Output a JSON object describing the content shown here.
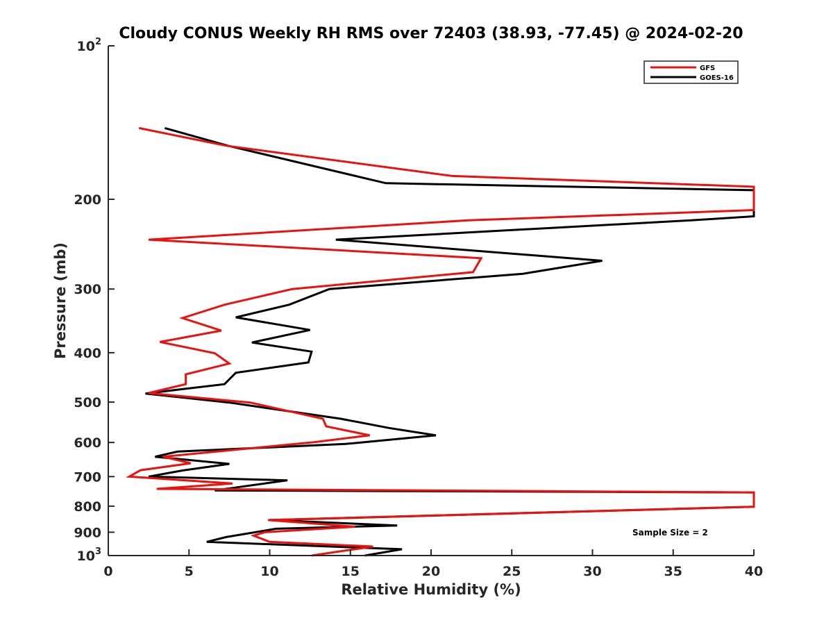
{
  "chart_data": {
    "type": "line",
    "title": "Cloudy CONUS Weekly RH RMS over 72403 (38.93, -77.45) @ 2024-02-20",
    "xlabel": "Relative Humidity (%)",
    "ylabel": "Pressure (mb)",
    "xlim": [
      0,
      40
    ],
    "ylim": [
      100,
      1000
    ],
    "y_scale": "log",
    "y_reversed": true,
    "grid": false,
    "legend_position": "top-right",
    "x_ticks": [
      "0",
      "5",
      "10",
      "15",
      "20",
      "25",
      "30",
      "35",
      "40"
    ],
    "y_ticks": [
      {
        "value": 100,
        "base": "10",
        "exp": "2"
      },
      {
        "value": 200,
        "label": "200"
      },
      {
        "value": 300,
        "label": "300"
      },
      {
        "value": 400,
        "label": "400"
      },
      {
        "value": 500,
        "label": "500"
      },
      {
        "value": 600,
        "label": "600"
      },
      {
        "value": 700,
        "label": "700"
      },
      {
        "value": 800,
        "label": "800"
      },
      {
        "value": 900,
        "label": "900"
      },
      {
        "value": 1000,
        "base": "10",
        "exp": "3"
      }
    ],
    "series": [
      {
        "name": "GFS",
        "color": "#e8130e",
        "points": [
          [
            1.9,
            145
          ],
          [
            7.3,
            157
          ],
          [
            21.3,
            180
          ],
          [
            40,
            189
          ],
          [
            40,
            210
          ],
          [
            22.3,
            220
          ],
          [
            2.5,
            240
          ],
          [
            23.1,
            261
          ],
          [
            22.6,
            278
          ],
          [
            11.4,
            300
          ],
          [
            7.2,
            322
          ],
          [
            4.6,
            342
          ],
          [
            7.0,
            362
          ],
          [
            3.2,
            381
          ],
          [
            6.6,
            401
          ],
          [
            7.5,
            420
          ],
          [
            4.8,
            441
          ],
          [
            4.8,
            461
          ],
          [
            2.5,
            480
          ],
          [
            8.8,
            501
          ],
          [
            13.3,
            539
          ],
          [
            13.5,
            558
          ],
          [
            16.2,
            581
          ],
          [
            12.8,
            599
          ],
          [
            3.4,
            640
          ],
          [
            5.1,
            659
          ],
          [
            2.0,
            680
          ],
          [
            1.3,
            700
          ],
          [
            7.7,
            722
          ],
          [
            3.0,
            740
          ],
          [
            40,
            752
          ],
          [
            40,
            802
          ],
          [
            9.9,
            852
          ],
          [
            15.3,
            878
          ],
          [
            9.7,
            900
          ],
          [
            9.0,
            914
          ],
          [
            10.0,
            940
          ],
          [
            16.4,
            960
          ],
          [
            12.6,
            1000
          ]
        ]
      },
      {
        "name": "GOES-16",
        "color": "#000000",
        "points": [
          [
            3.5,
            145
          ],
          [
            7.4,
            157
          ],
          [
            17.2,
            186
          ],
          [
            40,
            192
          ],
          [
            40,
            216
          ],
          [
            36.1,
            220
          ],
          [
            14.1,
            240
          ],
          [
            30.6,
            264
          ],
          [
            25.7,
            280
          ],
          [
            13.7,
            300
          ],
          [
            11.2,
            322
          ],
          [
            7.9,
            341
          ],
          [
            12.5,
            361
          ],
          [
            8.9,
            382
          ],
          [
            12.6,
            398
          ],
          [
            12.4,
            418
          ],
          [
            7.9,
            438
          ],
          [
            7.2,
            461
          ],
          [
            2.3,
            481
          ],
          [
            7.5,
            501
          ],
          [
            14.4,
            539
          ],
          [
            17.4,
            562
          ],
          [
            20.3,
            581
          ],
          [
            14.7,
            604
          ],
          [
            4.3,
            625
          ],
          [
            2.9,
            640
          ],
          [
            7.5,
            661
          ],
          [
            4.6,
            681
          ],
          [
            2.5,
            700
          ],
          [
            11.1,
            712
          ],
          [
            6.6,
            745
          ],
          [
            40,
            752
          ],
          [
            40,
            802
          ],
          [
            10.0,
            852
          ],
          [
            17.9,
            873
          ],
          [
            10.4,
            886
          ],
          [
            7.3,
            920
          ],
          [
            6.1,
            940
          ],
          [
            18.2,
            972
          ],
          [
            15.9,
            1000
          ]
        ]
      }
    ],
    "annotations": [
      "Sample Size = 2"
    ]
  }
}
